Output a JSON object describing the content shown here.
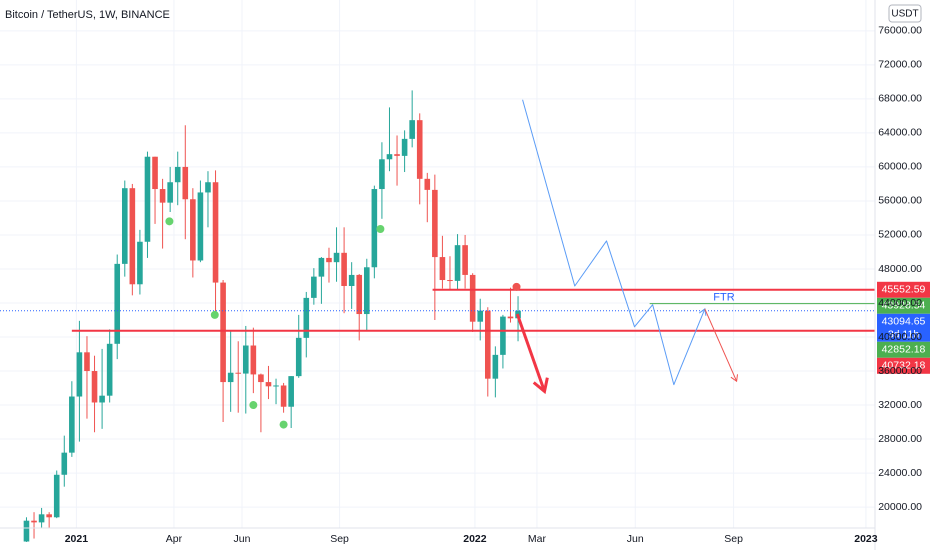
{
  "chart_data": {
    "type": "candlestick",
    "title": "Bitcoin / TetherUS, 1W, BINANCE",
    "currency": "USDT",
    "up_color": "#26a69a",
    "down_color": "#ef5350",
    "x": [
      0,
      1,
      2,
      3,
      4,
      5,
      6,
      7,
      8,
      9,
      10,
      11,
      12,
      13,
      14,
      15,
      16,
      17,
      18,
      19,
      20,
      21,
      22,
      23,
      24,
      25,
      26,
      27,
      28,
      29,
      30,
      31,
      32,
      33,
      34,
      35,
      36,
      37,
      38,
      39,
      40,
      41,
      42,
      43,
      44,
      45,
      46,
      47,
      48,
      49,
      50,
      51,
      52,
      53,
      54,
      55,
      56,
      57,
      58,
      59,
      60,
      61,
      62,
      63,
      64,
      65
    ],
    "open": [
      15950,
      18400,
      18200,
      19150,
      18800,
      23800,
      26400,
      33000,
      38200,
      36000,
      32300,
      33100,
      39200,
      48600,
      57500,
      46200,
      51200,
      61200,
      57400,
      55800,
      58200,
      60000,
      56200,
      49000,
      57000,
      58200,
      46400,
      34700,
      35800,
      35700,
      39000,
      35600,
      34700,
      34200,
      34300,
      31800,
      35400,
      39900,
      44600,
      47100,
      49300,
      48800,
      49900,
      46000,
      47300,
      42700,
      48200,
      57400,
      60900,
      61500,
      61300,
      63300,
      65500,
      58600,
      57300,
      49400,
      46700,
      46600,
      50800,
      47300,
      41800,
      43100,
      35100,
      37900,
      42400,
      42200
    ],
    "high": [
      18800,
      19400,
      19900,
      19400,
      24300,
      28400,
      34800,
      41900,
      40100,
      37800,
      38600,
      40900,
      49700,
      58400,
      58000,
      52600,
      61800,
      61200,
      58600,
      60000,
      61800,
      64900,
      57500,
      58400,
      59500,
      59600,
      46700,
      40800,
      39500,
      41300,
      41100,
      35700,
      36600,
      35100,
      34600,
      35400,
      42600,
      45300,
      48100,
      49400,
      50500,
      52900,
      52900,
      48800,
      47400,
      49200,
      57800,
      62900,
      67000,
      63700,
      64300,
      69000,
      66300,
      59300,
      59100,
      51900,
      49500,
      52100,
      52000,
      47500,
      44500,
      43500,
      38900,
      42600,
      45800,
      44800
    ],
    "low": [
      15900,
      16300,
      17600,
      17600,
      18700,
      22400,
      25900,
      27700,
      30400,
      28800,
      29200,
      32300,
      37400,
      47100,
      44900,
      45000,
      49300,
      53300,
      50400,
      54700,
      55500,
      51500,
      47000,
      48800,
      52900,
      42900,
      30000,
      31200,
      31100,
      31000,
      33400,
      28800,
      32700,
      32100,
      31100,
      29300,
      35200,
      37600,
      43800,
      43900,
      46400,
      46500,
      42800,
      43300,
      39600,
      40700,
      46900,
      53900,
      59500,
      57800,
      59400,
      62300,
      55600,
      53500,
      42000,
      45700,
      45500,
      45500,
      45700,
      40600,
      39600,
      33000,
      32900,
      36300,
      41700,
      39500
    ],
    "close": [
      18400,
      18200,
      19150,
      18800,
      23800,
      26400,
      33000,
      38200,
      36000,
      32300,
      33100,
      39200,
      48600,
      57500,
      46200,
      51200,
      61200,
      57400,
      55800,
      58200,
      60000,
      56200,
      49000,
      57000,
      58200,
      46400,
      34700,
      35800,
      35700,
      39000,
      35600,
      34700,
      34200,
      34300,
      31800,
      35400,
      39900,
      44600,
      47100,
      49300,
      48800,
      49900,
      46000,
      47300,
      42700,
      48200,
      57400,
      60900,
      61500,
      61300,
      63300,
      65500,
      58600,
      57300,
      49400,
      46700,
      46600,
      50800,
      47300,
      41800,
      43100,
      35100,
      37900,
      42400,
      42200,
      43094.65
    ],
    "last_price_color": "#2962ff",
    "countdown": "3d 11h",
    "xlim": [
      -3.5,
      112.2
    ],
    "xticks": [
      {
        "value": 6.6,
        "label": "2021"
      },
      {
        "value": 19.5,
        "label": "Apr"
      },
      {
        "value": 28.5,
        "label": "Jun"
      },
      {
        "value": 41.4,
        "label": "Sep"
      },
      {
        "value": 59.3,
        "label": "2022"
      },
      {
        "value": 67.5,
        "label": "Mar"
      },
      {
        "value": 80.5,
        "label": "Jun"
      },
      {
        "value": 93.5,
        "label": "Sep"
      },
      {
        "value": 111,
        "label": "2023"
      }
    ],
    "ylim": [
      17540,
      79630
    ],
    "yticks": [
      {
        "value": 20000,
        "label": "20000.00"
      },
      {
        "value": 24000,
        "label": "24000.00"
      },
      {
        "value": 28000,
        "label": "28000.00"
      },
      {
        "value": 32000,
        "label": "32000.00"
      },
      {
        "value": 36000,
        "label": "36000.00"
      },
      {
        "value": 40000,
        "label": "40000.00"
      },
      {
        "value": 44000,
        "label": "44000.00"
      },
      {
        "value": 48000,
        "label": "48000.00"
      },
      {
        "value": 52000,
        "label": "52000.00"
      },
      {
        "value": 56000,
        "label": "56000.00"
      },
      {
        "value": 60000,
        "label": "60000.00"
      },
      {
        "value": 64000,
        "label": "64000.00"
      },
      {
        "value": 68000,
        "label": "68000.00"
      },
      {
        "value": 72000,
        "label": "72000.00"
      },
      {
        "value": 76000,
        "label": "76000.00"
      }
    ],
    "grid": true,
    "levels": [
      {
        "value": 45552.59,
        "color": "#f23645",
        "from": 53.7
      },
      {
        "value": 43928.54,
        "color": "#4caf50",
        "from": 82.4,
        "label": "FTR"
      },
      {
        "value": 42852.18,
        "color": "#4caf50"
      },
      {
        "value": 40732.18,
        "color": "#f23645",
        "from": 6
      }
    ],
    "signals": [
      {
        "color": "#66d36e",
        "x": [
          18.9,
          24.9,
          30,
          34,
          46.8
        ],
        "y": [
          53600,
          42600,
          32000,
          29700,
          52700
        ]
      },
      {
        "color": "#ef5350",
        "x": [
          64.8
        ],
        "y": [
          45900
        ]
      }
    ],
    "projection": {
      "color": "#5b9cf6",
      "x": [
        65.6,
        72.5,
        76.7,
        80.4,
        82.8,
        85.6,
        89.7
      ],
      "y": [
        67900,
        46000,
        51300,
        41200,
        43800,
        34400,
        43300
      ]
    },
    "projection_tail": {
      "color": "#ef5350",
      "x": [
        89.7,
        93.9
      ],
      "y": [
        43300,
        34800
      ]
    },
    "arrow": {
      "color": "#f23645",
      "x": [
        64.9,
        68.5
      ],
      "y": [
        42700,
        33600
      ]
    }
  }
}
